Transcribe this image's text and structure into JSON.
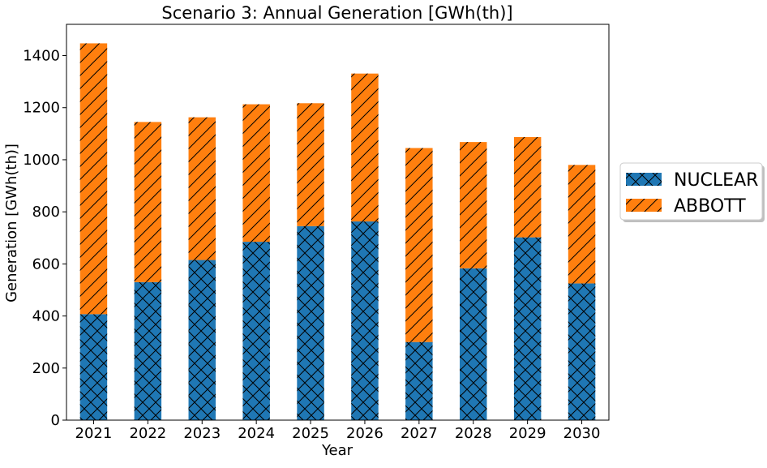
{
  "chart_data": {
    "type": "bar",
    "stacked": true,
    "title": "Scenario 3: Annual Generation [GWh(th)]",
    "xlabel": "Year",
    "ylabel": "Generation [GWh(th)]",
    "categories": [
      "2021",
      "2022",
      "2023",
      "2024",
      "2025",
      "2026",
      "2027",
      "2028",
      "2029",
      "2030"
    ],
    "ylim": [
      0,
      1520
    ],
    "yticks": [
      0,
      200,
      400,
      600,
      800,
      1000,
      1200,
      1400
    ],
    "grid": false,
    "legend_position": "right",
    "series": [
      {
        "name": "NUCLEAR",
        "color": "#1f77b4",
        "hatch": "cross-diagonal",
        "values": [
          407,
          530,
          615,
          685,
          745,
          763,
          300,
          583,
          702,
          525
        ]
      },
      {
        "name": "ABBOTT",
        "color": "#ff7f0e",
        "hatch": "diagonal",
        "values": [
          1040,
          615,
          548,
          528,
          472,
          568,
          745,
          485,
          385,
          455
        ]
      }
    ]
  }
}
